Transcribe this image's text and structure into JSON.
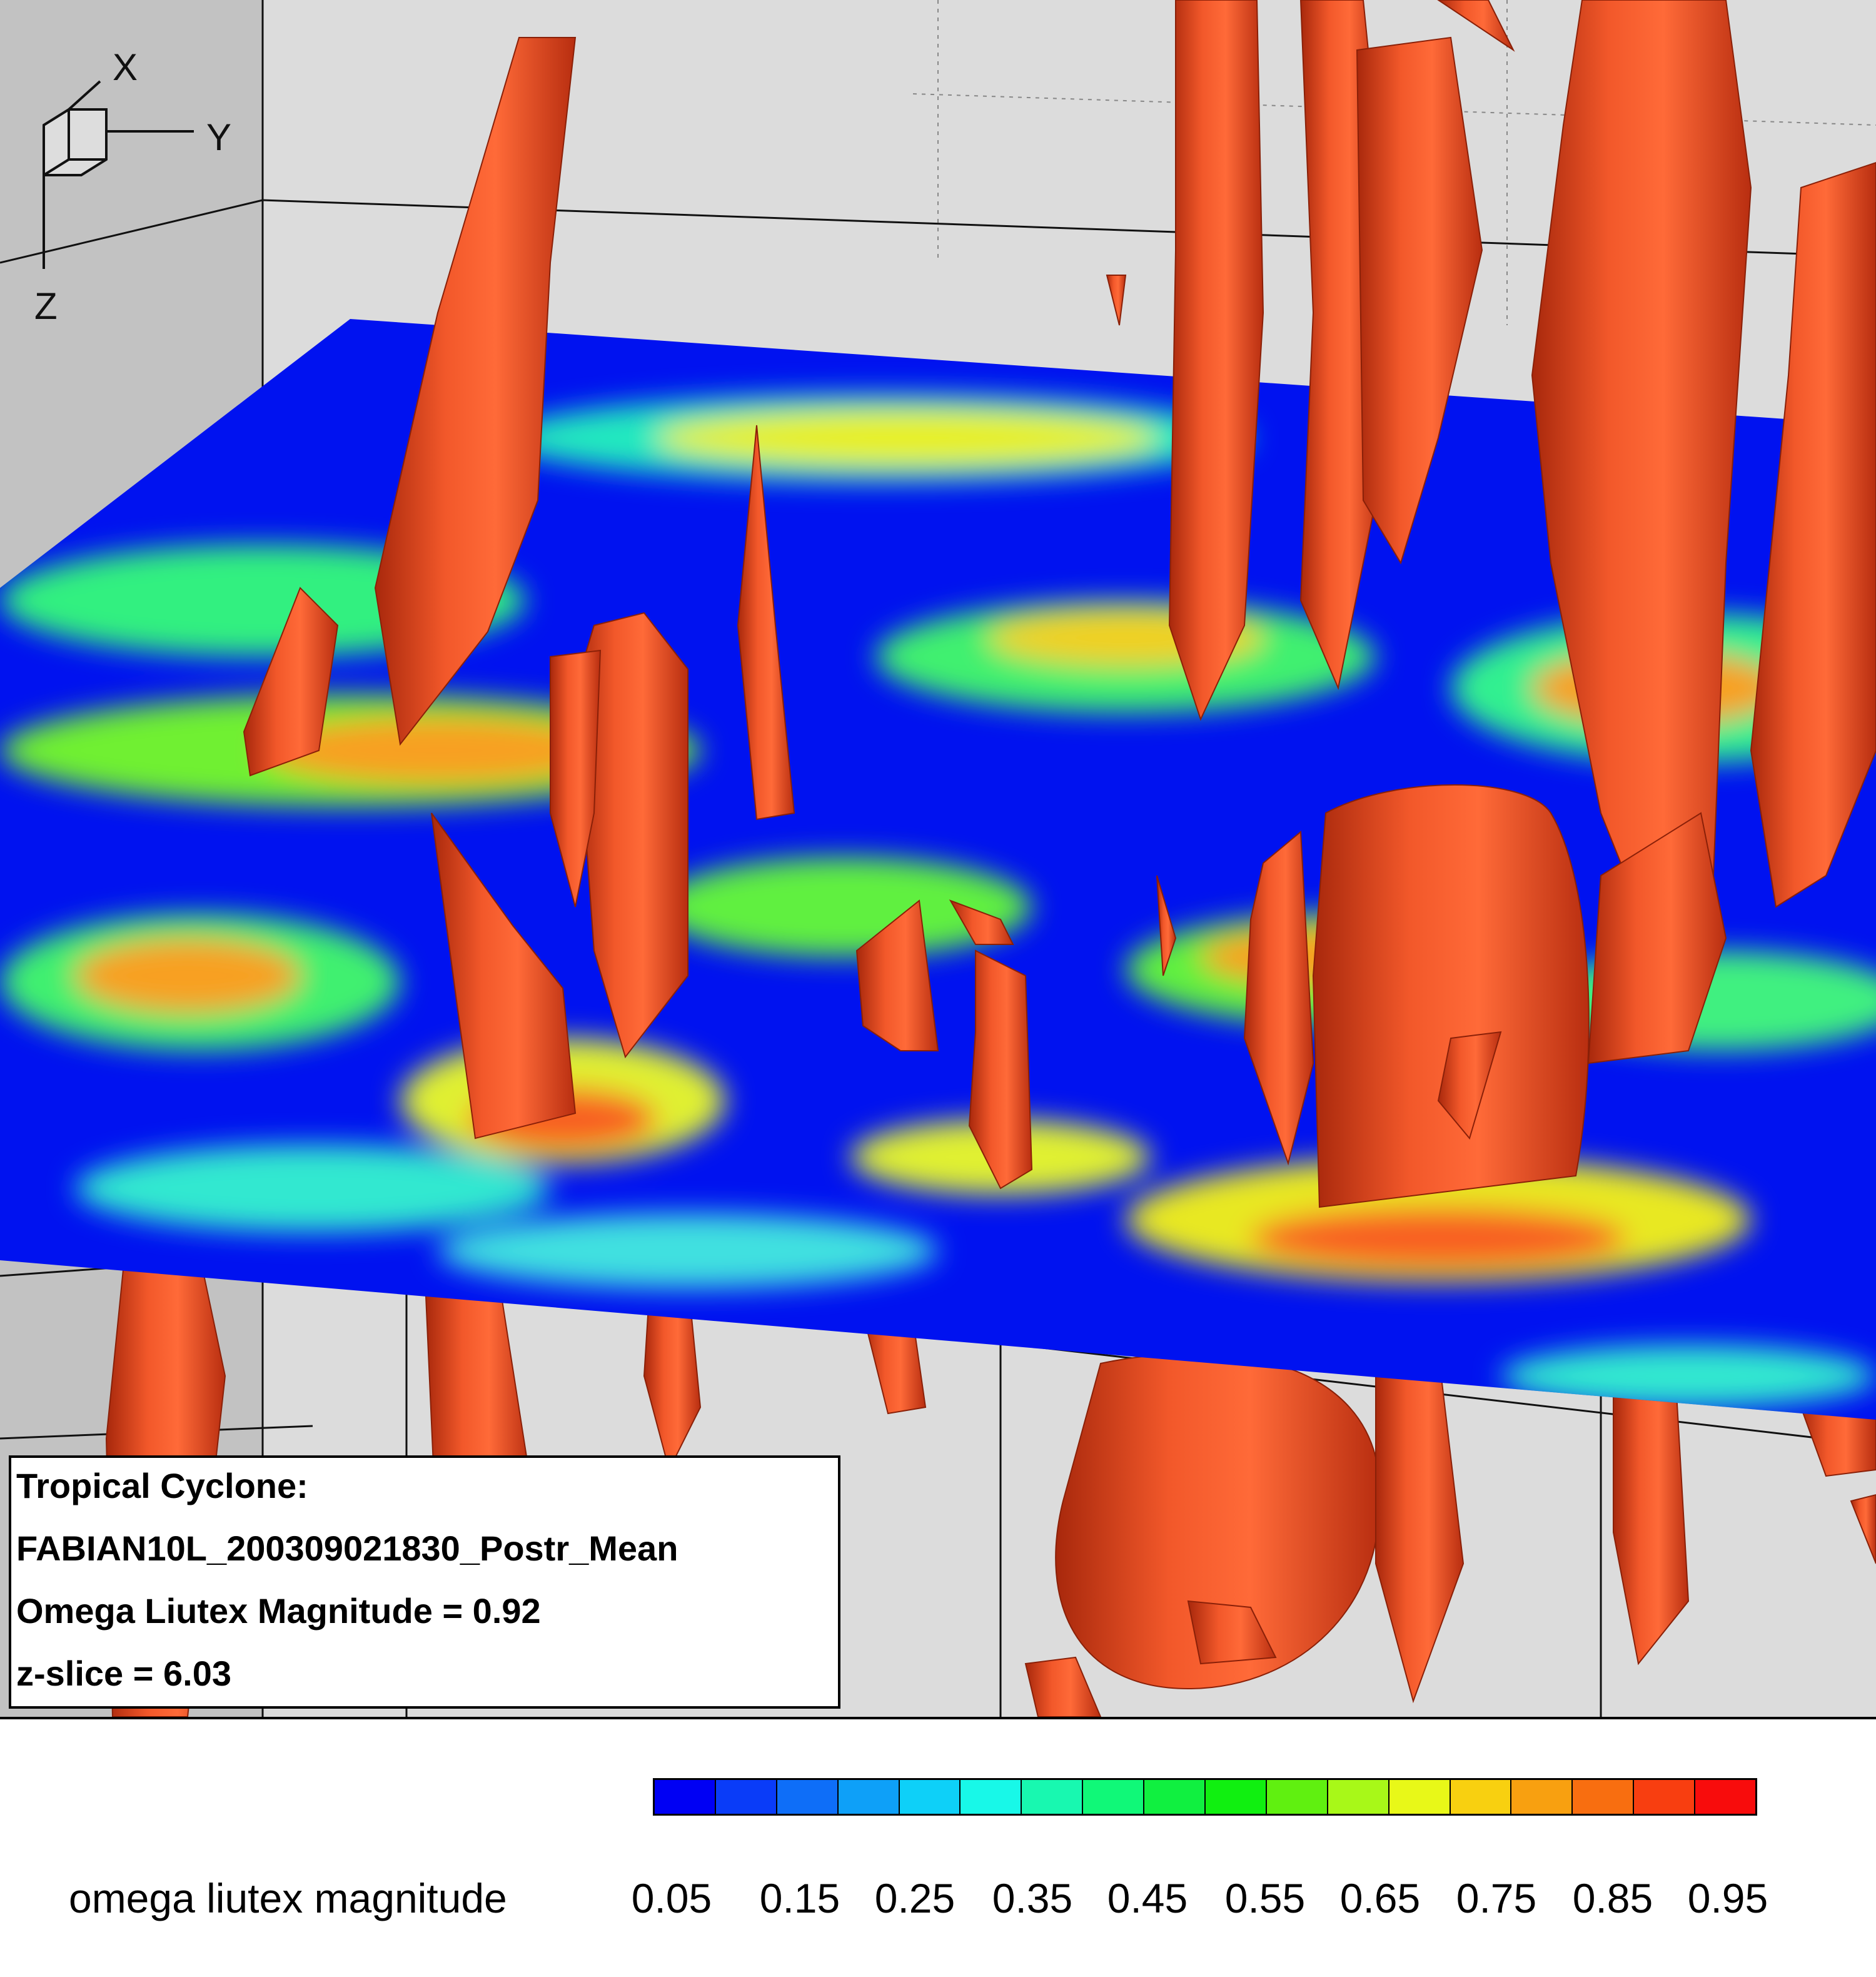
{
  "axes": {
    "x_label": "X",
    "y_label": "Y",
    "z_label": "Z"
  },
  "info_box": {
    "line1": "Tropical Cyclone:",
    "line2": "FABIAN10L_200309021830_Postr_Mean",
    "line3": "Omega Liutex Magnitude = 0.92",
    "line4": "z-slice = 6.03"
  },
  "legend": {
    "title": "omega liutex magnitude",
    "tick_labels": [
      "0.05",
      "0.15",
      "0.25",
      "0.35",
      "0.45",
      "0.55",
      "0.65",
      "0.75",
      "0.85",
      "0.95"
    ],
    "colors": [
      "#0000f4",
      "#0a3cf8",
      "#0e6ef8",
      "#0ea0f8",
      "#0ed0f8",
      "#18f8e8",
      "#18f8b0",
      "#10f878",
      "#10f040",
      "#10f010",
      "#60f010",
      "#a8f818",
      "#e8f818",
      "#f8d010",
      "#f8a010",
      "#f86e10",
      "#f83e10",
      "#f80c0c"
    ]
  },
  "colors": {
    "isosurface": "#f0481e",
    "background_wall": "#d4d4d4"
  }
}
